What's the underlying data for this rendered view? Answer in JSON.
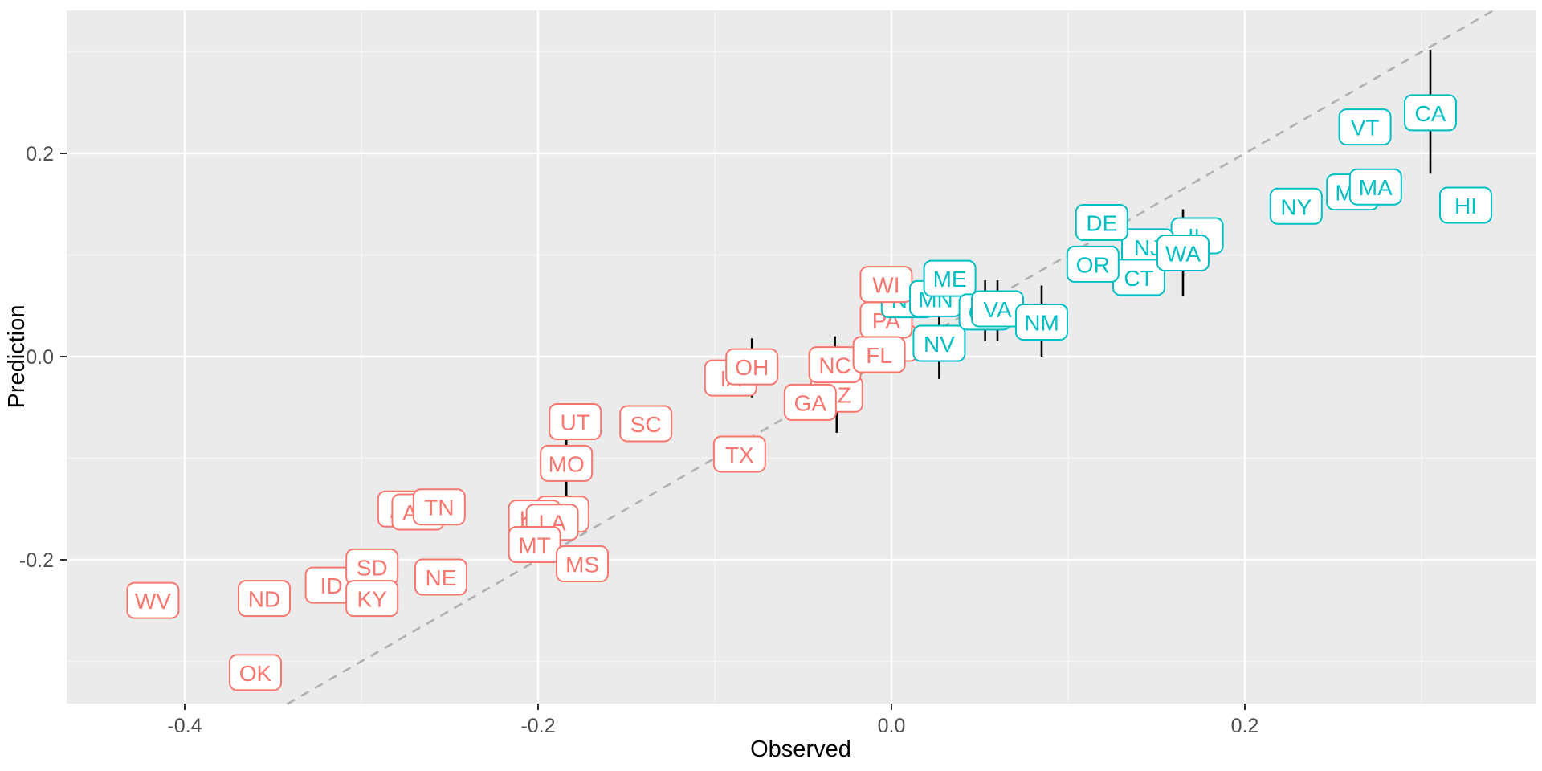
{
  "chart_data": {
    "type": "scatter",
    "title": "",
    "xlabel": "Observed",
    "ylabel": "Prediction",
    "x_ticks": [
      {
        "v": -0.4,
        "label": "-0.4"
      },
      {
        "v": -0.2,
        "label": "-0.2"
      },
      {
        "v": 0.0,
        "label": "0.0"
      },
      {
        "v": 0.2,
        "label": "0.2"
      }
    ],
    "y_ticks": [
      {
        "v": 0.2,
        "label": "0.2"
      },
      {
        "v": 0.0,
        "label": "0.0"
      },
      {
        "v": -0.2,
        "label": "-0.2"
      }
    ],
    "x_minor": [
      -0.3,
      -0.1,
      0.1,
      0.3
    ],
    "y_minor": [
      0.3,
      0.1,
      -0.1,
      -0.3
    ],
    "xlim": [
      -0.465,
      0.366
    ],
    "ylim": [
      -0.342,
      0.341
    ],
    "grid": true,
    "identity_line": {
      "shown": true,
      "style": "dashed",
      "from": -0.342,
      "to": 0.341
    },
    "legend": "none",
    "colors": {
      "negative": "#F8766D",
      "positive": "#00BFC4",
      "panel": "#EBEBEB",
      "grid_major": "#FFFFFF",
      "grid_minor": "#F5F5F5",
      "dashed_line": "#B0B0B0",
      "error_bar": "#000000",
      "label_fill": "#FFFFFF"
    },
    "series": [
      {
        "label": "AL",
        "observed": -0.276,
        "prediction": -0.15,
        "group": "negative"
      },
      {
        "label": "AR",
        "observed": -0.268,
        "prediction": -0.153,
        "group": "negative"
      },
      {
        "label": "TN",
        "observed": -0.256,
        "prediction": -0.148,
        "group": "negative"
      },
      {
        "label": "IN",
        "observed": -0.186,
        "prediction": -0.155,
        "group": "negative"
      },
      {
        "label": "KS",
        "observed": -0.202,
        "prediction": -0.159,
        "group": "negative"
      },
      {
        "label": "LA",
        "observed": -0.192,
        "prediction": -0.163,
        "group": "negative"
      },
      {
        "label": "MT",
        "observed": -0.202,
        "prediction": -0.185,
        "group": "negative"
      },
      {
        "label": "MS",
        "observed": -0.175,
        "prediction": -0.204,
        "group": "negative"
      },
      {
        "label": "ID",
        "observed": -0.317,
        "prediction": -0.225,
        "group": "negative"
      },
      {
        "label": "SD",
        "observed": -0.294,
        "prediction": -0.207,
        "group": "negative"
      },
      {
        "label": "KY",
        "observed": -0.294,
        "prediction": -0.238,
        "group": "negative"
      },
      {
        "label": "WV",
        "observed": -0.418,
        "prediction": -0.24,
        "group": "negative"
      },
      {
        "label": "ND",
        "observed": -0.355,
        "prediction": -0.238,
        "group": "negative"
      },
      {
        "label": "OK",
        "observed": -0.36,
        "prediction": -0.311,
        "group": "negative"
      },
      {
        "label": "NE",
        "observed": -0.255,
        "prediction": -0.217,
        "group": "negative"
      },
      {
        "label": "UT",
        "observed": -0.179,
        "prediction": -0.064,
        "group": "negative"
      },
      {
        "label": "MO",
        "observed": -0.184,
        "prediction": -0.105,
        "group": "negative",
        "bar": [
          -0.145,
          -0.065
        ]
      },
      {
        "label": "SC",
        "observed": -0.139,
        "prediction": -0.066,
        "group": "negative"
      },
      {
        "label": "TX",
        "observed": -0.086,
        "prediction": -0.096,
        "group": "negative"
      },
      {
        "label": "IA",
        "observed": -0.091,
        "prediction": -0.021,
        "group": "negative"
      },
      {
        "label": "OH",
        "observed": -0.079,
        "prediction": -0.01,
        "group": "negative",
        "bar": [
          -0.04,
          0.018
        ]
      },
      {
        "label": "MI",
        "observed": 0.0,
        "prediction": 0.013,
        "group": "negative"
      },
      {
        "label": "PA",
        "observed": -0.003,
        "prediction": 0.036,
        "group": "negative"
      },
      {
        "label": "AZ",
        "observed": -0.031,
        "prediction": -0.037,
        "group": "negative",
        "bar": [
          -0.075,
          0.0
        ]
      },
      {
        "label": "GA",
        "observed": -0.046,
        "prediction": -0.045,
        "group": "negative"
      },
      {
        "label": "NC",
        "observed": -0.032,
        "prediction": -0.008,
        "group": "negative",
        "bar": [
          -0.045,
          0.02
        ]
      },
      {
        "label": "FL",
        "observed": -0.007,
        "prediction": 0.002,
        "group": "negative"
      },
      {
        "label": "NH",
        "observed": 0.009,
        "prediction": 0.056,
        "group": "positive"
      },
      {
        "label": "WI",
        "observed": -0.003,
        "prediction": 0.071,
        "group": "negative"
      },
      {
        "label": "MN",
        "observed": 0.025,
        "prediction": 0.057,
        "group": "positive"
      },
      {
        "label": "ME",
        "observed": 0.033,
        "prediction": 0.077,
        "group": "positive"
      },
      {
        "label": "NV",
        "observed": 0.027,
        "prediction": 0.013,
        "group": "positive",
        "bar": [
          -0.022,
          0.048
        ]
      },
      {
        "label": "CO",
        "observed": 0.053,
        "prediction": 0.044,
        "group": "positive",
        "bar": [
          0.015,
          0.075
        ]
      },
      {
        "label": "VA",
        "observed": 0.06,
        "prediction": 0.047,
        "group": "positive",
        "bar": [
          0.015,
          0.075
        ]
      },
      {
        "label": "NM",
        "observed": 0.085,
        "prediction": 0.034,
        "group": "positive",
        "bar": [
          0.0,
          0.07
        ]
      },
      {
        "label": "IL",
        "observed": 0.173,
        "prediction": 0.119,
        "group": "positive"
      },
      {
        "label": "NJ",
        "observed": 0.145,
        "prediction": 0.108,
        "group": "positive"
      },
      {
        "label": "CT",
        "observed": 0.14,
        "prediction": 0.078,
        "group": "positive"
      },
      {
        "label": "WA",
        "observed": 0.165,
        "prediction": 0.102,
        "group": "positive",
        "bar": [
          0.06,
          0.145
        ]
      },
      {
        "label": "DE",
        "observed": 0.119,
        "prediction": 0.132,
        "group": "positive"
      },
      {
        "label": "OR",
        "observed": 0.114,
        "prediction": 0.091,
        "group": "positive"
      },
      {
        "label": "MD",
        "observed": 0.261,
        "prediction": 0.162,
        "group": "positive"
      },
      {
        "label": "MA",
        "observed": 0.274,
        "prediction": 0.167,
        "group": "positive"
      },
      {
        "label": "NY",
        "observed": 0.229,
        "prediction": 0.148,
        "group": "positive"
      },
      {
        "label": "HI",
        "observed": 0.325,
        "prediction": 0.149,
        "group": "positive"
      },
      {
        "label": "VT",
        "observed": 0.268,
        "prediction": 0.226,
        "group": "positive"
      },
      {
        "label": "CA",
        "observed": 0.305,
        "prediction": 0.24,
        "group": "positive",
        "bar": [
          0.18,
          0.302
        ]
      }
    ]
  },
  "axes": {
    "x_title": "Observed",
    "y_title": "Prediction"
  }
}
